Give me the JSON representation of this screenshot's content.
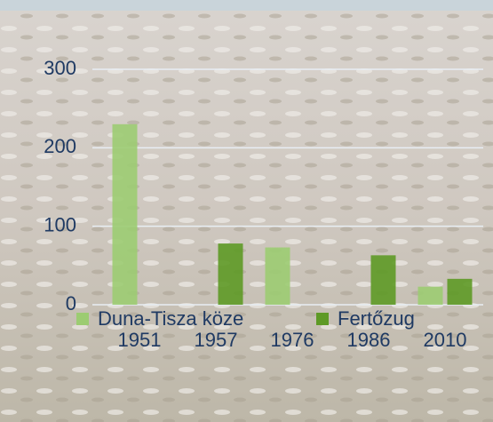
{
  "chart_data": {
    "type": "bar",
    "categories": [
      "1951",
      "1957",
      "1976",
      "1986",
      "2010"
    ],
    "series": [
      {
        "name": "Duna-Tisza köze",
        "color": "#9ccc72",
        "values": [
          230,
          null,
          73,
          null,
          23
        ]
      },
      {
        "name": "Fertőzug",
        "color": "#5e9a26",
        "values": [
          null,
          78,
          null,
          63,
          33
        ]
      }
    ],
    "ylim": [
      0,
      300
    ],
    "yticks": [
      0,
      100,
      200,
      300
    ],
    "grid": true
  }
}
